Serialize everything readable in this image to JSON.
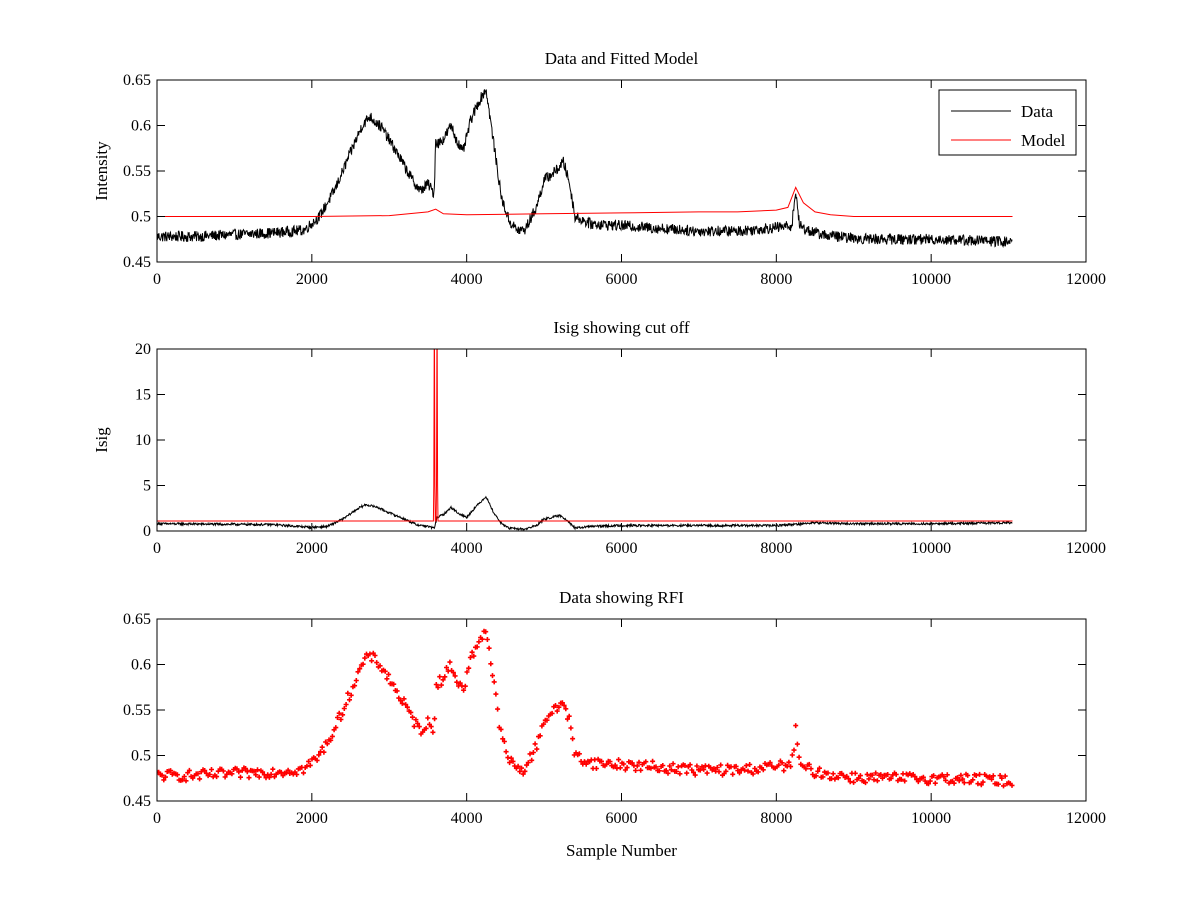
{
  "figure": {
    "background": "#ffffff",
    "series_colors": {
      "Data": "#000000",
      "Model": "#ff0000",
      "RFI": "#ff0000"
    }
  },
  "chart_data": [
    {
      "type": "line",
      "title": "Data and Fitted Model",
      "xlabel": "",
      "ylabel": "Intensity",
      "xlim": [
        0,
        12000
      ],
      "ylim": [
        0.45,
        0.65
      ],
      "xticks": [
        0,
        2000,
        4000,
        6000,
        8000,
        10000,
        12000
      ],
      "yticks": [
        0.45,
        0.5,
        0.55,
        0.6,
        0.65
      ],
      "xtick_labels": [
        "0",
        "2000",
        "4000",
        "6000",
        "8000",
        "10000",
        "12000"
      ],
      "ytick_labels": [
        "0.45",
        "0.5",
        "0.55",
        "0.6",
        "0.65"
      ],
      "grid": false,
      "legend": {
        "position": "top-right",
        "entries": [
          "Data",
          "Model"
        ]
      },
      "series": [
        {
          "name": "Data",
          "color": "#000000",
          "noise": 0.006,
          "x": [
            0,
            500,
            1000,
            1500,
            1900,
            2100,
            2300,
            2500,
            2650,
            2750,
            2900,
            3100,
            3300,
            3400,
            3500,
            3580,
            3600,
            3620,
            3700,
            3800,
            3850,
            3950,
            4050,
            4150,
            4250,
            4350,
            4450,
            4550,
            4650,
            4750,
            4900,
            5000,
            5150,
            5250,
            5320,
            5400,
            5600,
            6000,
            6500,
            7000,
            7500,
            8000,
            8200,
            8250,
            8300,
            8400,
            8600,
            9000,
            9500,
            10000,
            10500,
            11050
          ],
          "y": [
            0.478,
            0.478,
            0.48,
            0.482,
            0.485,
            0.5,
            0.53,
            0.57,
            0.6,
            0.61,
            0.598,
            0.57,
            0.54,
            0.528,
            0.536,
            0.525,
            0.585,
            0.58,
            0.585,
            0.6,
            0.588,
            0.57,
            0.605,
            0.625,
            0.64,
            0.58,
            0.52,
            0.495,
            0.485,
            0.485,
            0.51,
            0.54,
            0.55,
            0.56,
            0.54,
            0.5,
            0.492,
            0.49,
            0.487,
            0.484,
            0.484,
            0.488,
            0.49,
            0.528,
            0.49,
            0.485,
            0.48,
            0.476,
            0.475,
            0.475,
            0.474,
            0.472
          ]
        },
        {
          "name": "Model",
          "color": "#ff0000",
          "noise": 0,
          "x": [
            0,
            1500,
            2000,
            3000,
            3500,
            3600,
            3700,
            4000,
            5000,
            6000,
            7000,
            7500,
            8000,
            8150,
            8250,
            8350,
            8500,
            8700,
            9000,
            11050
          ],
          "y": [
            0.5,
            0.5,
            0.5,
            0.501,
            0.505,
            0.508,
            0.503,
            0.502,
            0.503,
            0.504,
            0.505,
            0.505,
            0.507,
            0.51,
            0.532,
            0.515,
            0.505,
            0.502,
            0.5,
            0.5
          ]
        }
      ]
    },
    {
      "type": "line",
      "title": "Isig showing cut off",
      "xlabel": "",
      "ylabel": "Isig",
      "xlim": [
        0,
        12000
      ],
      "ylim": [
        0,
        20
      ],
      "xticks": [
        0,
        2000,
        4000,
        6000,
        8000,
        10000,
        12000
      ],
      "yticks": [
        0,
        5,
        10,
        15,
        20
      ],
      "xtick_labels": [
        "0",
        "2000",
        "4000",
        "6000",
        "8000",
        "10000",
        "12000"
      ],
      "ytick_labels": [
        "0",
        "5",
        "10",
        "15",
        "20"
      ],
      "grid": false,
      "series": [
        {
          "name": "",
          "color": "#000000",
          "noise": 0.12,
          "x": [
            0,
            1500,
            2000,
            2200,
            2400,
            2600,
            2700,
            2850,
            3000,
            3200,
            3350,
            3500,
            3580,
            3620,
            3700,
            3800,
            3900,
            4000,
            4100,
            4250,
            4350,
            4450,
            4550,
            4750,
            4900,
            5000,
            5200,
            5300,
            5400,
            5600,
            6000,
            7000,
            8000,
            8500,
            9000,
            10000,
            11050
          ],
          "y": [
            0.8,
            0.7,
            0.4,
            0.5,
            1.3,
            2.5,
            2.9,
            2.6,
            2.0,
            1.3,
            0.7,
            0.5,
            0.3,
            1.5,
            1.8,
            2.6,
            1.9,
            1.5,
            2.5,
            3.8,
            2.0,
            0.8,
            0.3,
            0.2,
            0.6,
            1.3,
            1.7,
            1.2,
            0.3,
            0.5,
            0.6,
            0.6,
            0.6,
            0.9,
            0.8,
            0.8,
            0.9
          ]
        },
        {
          "name": "",
          "color": "#ff0000",
          "noise": 0,
          "x": [
            0,
            3570,
            3575,
            3580,
            3585,
            3590,
            3595,
            3600,
            3605,
            3610,
            3615,
            3620,
            3625,
            3630,
            3635,
            3640,
            11050
          ],
          "y": [
            1.1,
            1.1,
            5,
            20,
            20,
            5,
            1.1,
            1.1,
            1.1,
            5,
            20,
            20,
            5,
            1.1,
            1.1,
            1.1,
            1.1
          ]
        }
      ]
    },
    {
      "type": "scatter",
      "title": "Data showing RFI",
      "xlabel": "Sample Number",
      "ylabel": "",
      "xlim": [
        0,
        12000
      ],
      "ylim": [
        0.45,
        0.65
      ],
      "xticks": [
        0,
        2000,
        4000,
        6000,
        8000,
        10000,
        12000
      ],
      "yticks": [
        0.45,
        0.5,
        0.55,
        0.6,
        0.65
      ],
      "xtick_labels": [
        "0",
        "2000",
        "4000",
        "6000",
        "8000",
        "10000",
        "12000"
      ],
      "ytick_labels": [
        "0.45",
        "0.5",
        "0.55",
        "0.6",
        "0.65"
      ],
      "grid": false,
      "series": [
        {
          "name": "",
          "color": "#ff0000",
          "marker": "plus",
          "noise": 0.006,
          "x": [
            0,
            500,
            1000,
            1500,
            1900,
            2100,
            2300,
            2500,
            2650,
            2750,
            2900,
            3100,
            3300,
            3400,
            3500,
            3580,
            3600,
            3620,
            3700,
            3800,
            3850,
            3950,
            4050,
            4150,
            4250,
            4350,
            4450,
            4550,
            4650,
            4750,
            4900,
            5000,
            5150,
            5250,
            5320,
            5400,
            5600,
            6000,
            6500,
            7000,
            7500,
            8000,
            8200,
            8250,
            8300,
            8400,
            8600,
            9000,
            9500,
            10000,
            10500,
            11050
          ],
          "y": [
            0.478,
            0.478,
            0.48,
            0.482,
            0.485,
            0.5,
            0.53,
            0.57,
            0.6,
            0.61,
            0.598,
            0.57,
            0.54,
            0.528,
            0.536,
            0.525,
            0.585,
            0.58,
            0.585,
            0.6,
            0.588,
            0.57,
            0.605,
            0.625,
            0.64,
            0.58,
            0.52,
            0.495,
            0.485,
            0.485,
            0.51,
            0.54,
            0.55,
            0.56,
            0.54,
            0.5,
            0.492,
            0.49,
            0.487,
            0.484,
            0.484,
            0.488,
            0.49,
            0.528,
            0.49,
            0.485,
            0.48,
            0.476,
            0.475,
            0.475,
            0.474,
            0.472
          ]
        }
      ]
    }
  ]
}
